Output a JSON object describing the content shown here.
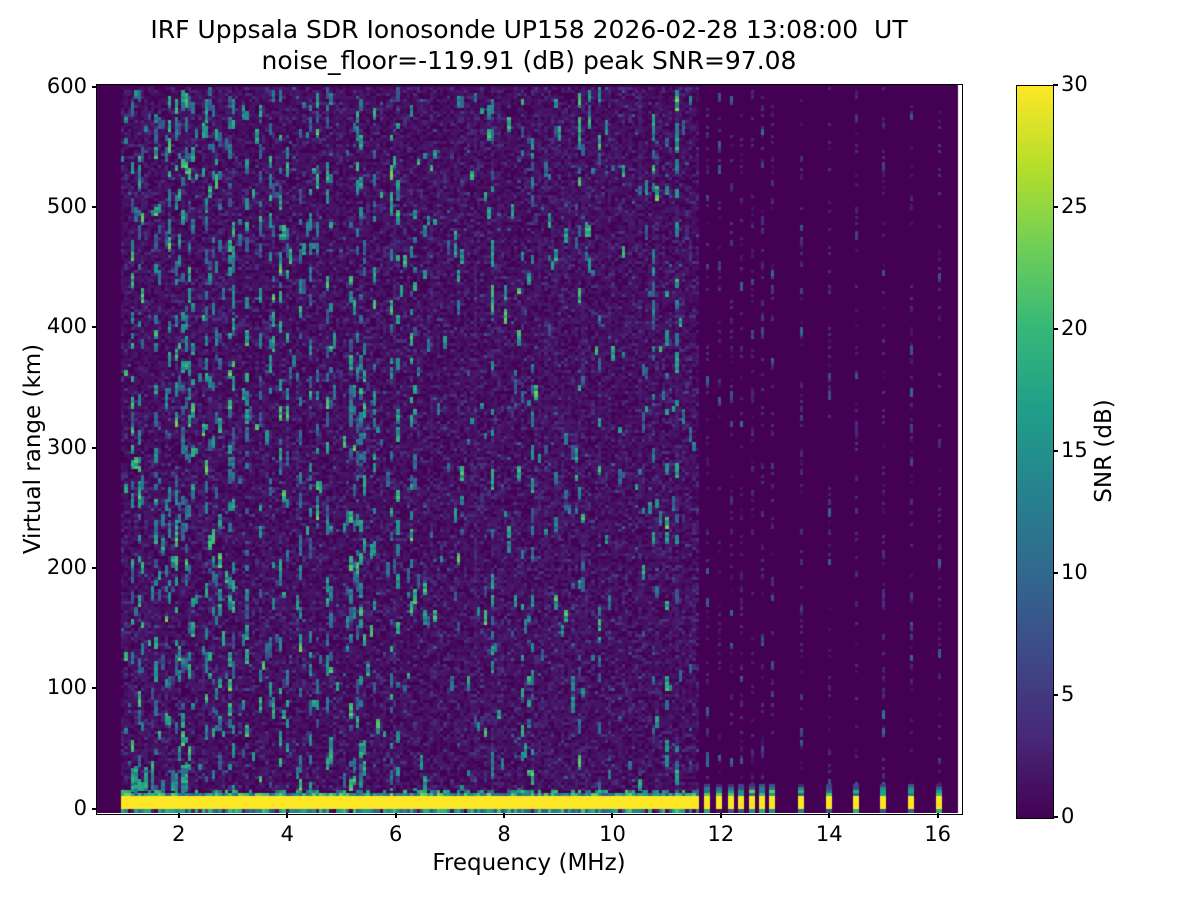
{
  "chart_data": {
    "type": "heatmap",
    "title": "IRF Uppsala SDR Ionosonde UP158 2026-02-28 13:08:00  UT",
    "subtitle": "noise_floor=-119.91 (dB) peak SNR=97.08",
    "xlabel": "Frequency (MHz)",
    "ylabel": "Virtual range (km)",
    "xlim": [
      0.49,
      16.43
    ],
    "ylim": [
      -3.5,
      601.5
    ],
    "xticks": [
      2,
      4,
      6,
      8,
      10,
      12,
      14,
      16
    ],
    "yticks": [
      0,
      100,
      200,
      300,
      400,
      500,
      600
    ],
    "grid": false,
    "noise_floor_db": -119.91,
    "peak_snr_db": 97.08,
    "colorbar": {
      "label": "SNR (dB)",
      "ticks": [
        0,
        5,
        10,
        15,
        20,
        25,
        30
      ],
      "vmin": 0,
      "vmax": 30,
      "position": "right"
    },
    "colormap": {
      "name": "viridis",
      "stops": [
        {
          "t": 0.0,
          "color": "#440154"
        },
        {
          "t": 0.111,
          "color": "#482878"
        },
        {
          "t": 0.222,
          "color": "#3e4989"
        },
        {
          "t": 0.333,
          "color": "#31688e"
        },
        {
          "t": 0.444,
          "color": "#26828e"
        },
        {
          "t": 0.556,
          "color": "#1f9e89"
        },
        {
          "t": 0.667,
          "color": "#35b779"
        },
        {
          "t": 0.778,
          "color": "#6ece58"
        },
        {
          "t": 0.889,
          "color": "#b5de2b"
        },
        {
          "t": 1.0,
          "color": "#fde725"
        }
      ]
    },
    "sweep": {
      "continuous_mhz": [
        0.93,
        11.58
      ],
      "discrete_mhz": [
        11.72,
        11.94,
        12.16,
        12.36,
        12.55,
        12.74,
        12.92,
        13.46,
        13.97,
        14.47,
        14.97,
        15.49,
        16.0
      ],
      "data_end_mhz": 16.36
    },
    "ground_echo": {
      "range_km": [
        0,
        11
      ],
      "snr_db": 30,
      "edge_db": [
        8,
        25
      ]
    },
    "noise_speckle": {
      "background_db": [
        0,
        2
      ],
      "faint_db": [
        1.5,
        5
      ],
      "burst_db": [
        8,
        21
      ],
      "enhanced_below_mhz": 5.6,
      "cell_mhz": 0.062,
      "cell_km": 2.5
    }
  }
}
